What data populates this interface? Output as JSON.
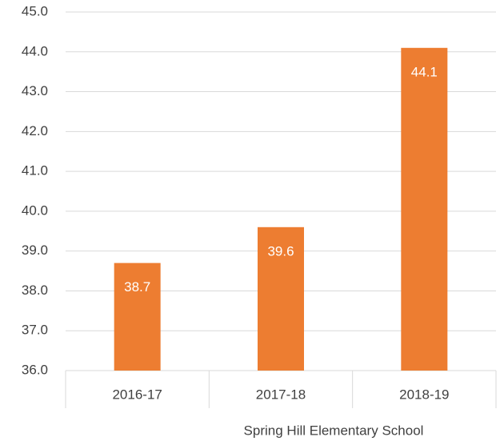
{
  "chart_data": {
    "type": "bar",
    "categories": [
      "2016-17",
      "2017-18",
      "2018-19"
    ],
    "values": [
      38.7,
      39.6,
      44.1
    ],
    "color": "#ed7d31",
    "x_label": "Spring Hill Elementary School",
    "ylim": [
      36,
      45
    ],
    "yticks": [
      {
        "value": 36,
        "label": "36.0"
      },
      {
        "value": 37,
        "label": "37.0"
      },
      {
        "value": 38,
        "label": "38.0"
      },
      {
        "value": 39,
        "label": "39.0"
      },
      {
        "value": 40,
        "label": "40.0"
      },
      {
        "value": 41,
        "label": "41.0"
      },
      {
        "value": 42,
        "label": "42.0"
      },
      {
        "value": 43,
        "label": "43.0"
      },
      {
        "value": 44,
        "label": "44.0"
      },
      {
        "value": 45,
        "label": "45.0"
      }
    ],
    "grid": true
  }
}
